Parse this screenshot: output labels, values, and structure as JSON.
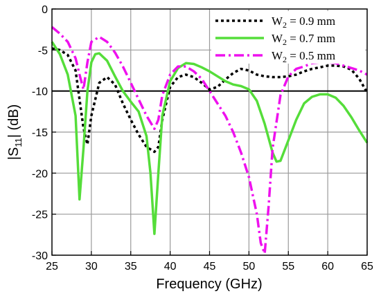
{
  "chart_data": {
    "type": "line",
    "xlabel": "Frequency (GHz)",
    "ylabel_main": "|S",
    "ylabel_sub": "11",
    "ylabel_tail": "| (dB)",
    "xlim": [
      25,
      65
    ],
    "ylim": [
      -30,
      0
    ],
    "xticks": [
      25,
      30,
      35,
      40,
      45,
      50,
      55,
      60,
      65
    ],
    "yticks": [
      0,
      -5,
      -10,
      -15,
      -20,
      -25,
      -30
    ],
    "grid": true,
    "legend_position": "top-right",
    "reference_line": {
      "y": -10,
      "color": "#000000"
    },
    "series": [
      {
        "name_main": "W",
        "name_sub": "2",
        "name_tail": " = 0.9 mm",
        "color": "#000000",
        "style": "dotted",
        "points": [
          [
            25,
            -4.8
          ],
          [
            26,
            -5.0
          ],
          [
            27,
            -5.6
          ],
          [
            28,
            -7.5
          ],
          [
            29,
            -14.5
          ],
          [
            29.5,
            -16.5
          ],
          [
            30,
            -13
          ],
          [
            31,
            -9
          ],
          [
            32,
            -8.3
          ],
          [
            33,
            -9.2
          ],
          [
            34,
            -11.5
          ],
          [
            35,
            -13.5
          ],
          [
            36,
            -15.3
          ],
          [
            37,
            -16.8
          ],
          [
            38,
            -17.4
          ],
          [
            38.5,
            -16.8
          ],
          [
            39,
            -13.5
          ],
          [
            40,
            -9.5
          ],
          [
            41,
            -8.3
          ],
          [
            42,
            -8.0
          ],
          [
            43,
            -8.3
          ],
          [
            44,
            -9.0
          ],
          [
            45,
            -9.8
          ],
          [
            46,
            -9.5
          ],
          [
            47,
            -8.6
          ],
          [
            48,
            -7.8
          ],
          [
            49,
            -7.3
          ],
          [
            50,
            -7.5
          ],
          [
            51,
            -8.0
          ],
          [
            52,
            -8.2
          ],
          [
            53,
            -8.3
          ],
          [
            54,
            -8.3
          ],
          [
            55,
            -8.2
          ],
          [
            56,
            -8.0
          ],
          [
            57,
            -7.6
          ],
          [
            58,
            -7.3
          ],
          [
            59,
            -7.1
          ],
          [
            60,
            -6.9
          ],
          [
            61,
            -6.9
          ],
          [
            62,
            -7.0
          ],
          [
            63,
            -7.4
          ],
          [
            64,
            -8.5
          ],
          [
            65,
            -10.2
          ]
        ]
      },
      {
        "name_main": "W",
        "name_sub": "2",
        "name_tail": " = 0.7 mm",
        "color": "#55dd3a",
        "style": "solid",
        "points": [
          [
            25,
            -4.0
          ],
          [
            26,
            -5.5
          ],
          [
            27,
            -8.0
          ],
          [
            28,
            -13
          ],
          [
            28.5,
            -23.2
          ],
          [
            29,
            -17
          ],
          [
            29.5,
            -10
          ],
          [
            30,
            -6.5
          ],
          [
            30.5,
            -5.5
          ],
          [
            31,
            -5.4
          ],
          [
            32,
            -6.3
          ],
          [
            33,
            -8.2
          ],
          [
            34,
            -10.0
          ],
          [
            35,
            -11.3
          ],
          [
            36,
            -12.5
          ],
          [
            37,
            -15.5
          ],
          [
            37.5,
            -20
          ],
          [
            38,
            -27.4
          ],
          [
            38.5,
            -20
          ],
          [
            39,
            -13
          ],
          [
            40,
            -8.8
          ],
          [
            41,
            -7.2
          ],
          [
            42,
            -6.6
          ],
          [
            43,
            -6.7
          ],
          [
            44,
            -7.1
          ],
          [
            45,
            -7.6
          ],
          [
            46,
            -8.2
          ],
          [
            47,
            -8.8
          ],
          [
            48,
            -9.2
          ],
          [
            49,
            -9.4
          ],
          [
            50,
            -9.8
          ],
          [
            51,
            -11.2
          ],
          [
            52,
            -14
          ],
          [
            53,
            -17.5
          ],
          [
            53.5,
            -18.6
          ],
          [
            54,
            -18.5
          ],
          [
            55,
            -16
          ],
          [
            56,
            -13.5
          ],
          [
            57,
            -11.5
          ],
          [
            58,
            -10.7
          ],
          [
            59,
            -10.4
          ],
          [
            60,
            -10.4
          ],
          [
            61,
            -10.8
          ],
          [
            62,
            -11.8
          ],
          [
            63,
            -13.2
          ],
          [
            64,
            -14.8
          ],
          [
            65,
            -16.3
          ]
        ]
      },
      {
        "name_main": "W",
        "name_sub": "2",
        "name_tail": " = 0.5 mm",
        "color": "#ee11ee",
        "style": "dashdot",
        "points": [
          [
            25,
            -2.2
          ],
          [
            26,
            -3.0
          ],
          [
            27,
            -4.0
          ],
          [
            28,
            -6.0
          ],
          [
            28.5,
            -8.0
          ],
          [
            29,
            -9.8
          ],
          [
            29.5,
            -6.5
          ],
          [
            30,
            -4.0
          ],
          [
            31,
            -3.4
          ],
          [
            32,
            -4.0
          ],
          [
            33,
            -5.3
          ],
          [
            34,
            -7.0
          ],
          [
            35,
            -9.0
          ],
          [
            36,
            -11.0
          ],
          [
            37,
            -13.0
          ],
          [
            38,
            -14.6
          ],
          [
            38.5,
            -13.5
          ],
          [
            39,
            -10.5
          ],
          [
            40,
            -8.0
          ],
          [
            41,
            -7.0
          ],
          [
            42,
            -7.0
          ],
          [
            43,
            -7.6
          ],
          [
            44,
            -8.5
          ],
          [
            45,
            -10.0
          ],
          [
            46,
            -11.5
          ],
          [
            47,
            -13.0
          ],
          [
            48,
            -15.0
          ],
          [
            49,
            -17.5
          ],
          [
            50,
            -20.5
          ],
          [
            51,
            -25.0
          ],
          [
            51.5,
            -28.5
          ],
          [
            52,
            -29.8
          ],
          [
            52.5,
            -24
          ],
          [
            53,
            -17
          ],
          [
            54,
            -10.5
          ],
          [
            55,
            -8.2
          ],
          [
            56,
            -7.3
          ],
          [
            57,
            -7.0
          ],
          [
            58,
            -6.6
          ],
          [
            59,
            -6.5
          ],
          [
            60,
            -6.5
          ],
          [
            61,
            -6.6
          ],
          [
            62,
            -6.9
          ],
          [
            63,
            -7.2
          ],
          [
            64,
            -7.5
          ],
          [
            65,
            -8.0
          ]
        ]
      }
    ]
  }
}
